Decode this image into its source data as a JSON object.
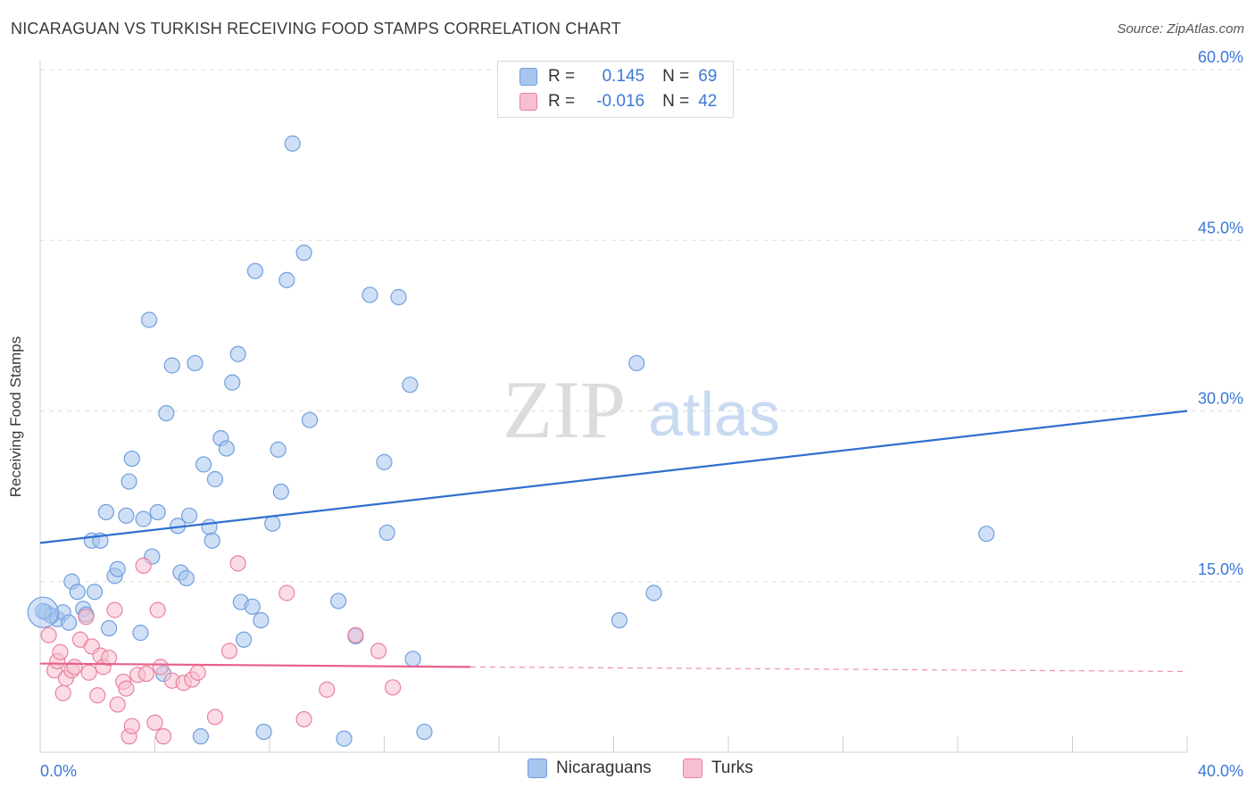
{
  "title": "NICARAGUAN VS TURKISH RECEIVING FOOD STAMPS CORRELATION CHART",
  "source": "Source: ZipAtlas.com",
  "watermark": {
    "zip": "ZIP",
    "atlas": "atlas"
  },
  "legend": {
    "rows": [
      {
        "r_label": "R =",
        "r_value": "0.145",
        "n_label": "N =",
        "n_value": "69",
        "color": "#a8c5ee",
        "stroke": "#6f9fde"
      },
      {
        "r_label": "R =",
        "r_value": "-0.016",
        "n_label": "N =",
        "n_value": "42",
        "color": "#f7bfd0",
        "stroke": "#e8829f"
      }
    ]
  },
  "bottom_legend": [
    {
      "label": "Nicaraguans",
      "color": "#a8c5ee",
      "stroke": "#6f9fde"
    },
    {
      "label": "Turks",
      "color": "#f7bfd0",
      "stroke": "#e8829f"
    }
  ],
  "chart_data": {
    "type": "scatter",
    "title": "NICARAGUAN VS TURKISH RECEIVING FOOD STAMPS CORRELATION CHART",
    "xlabel": "",
    "ylabel": "Receiving Food Stamps",
    "xlim": [
      0,
      40
    ],
    "ylim": [
      0,
      60
    ],
    "x_tick_labels": [
      "0.0%",
      "40.0%"
    ],
    "y_tick_labels": [
      "15.0%",
      "30.0%",
      "45.0%",
      "60.0%"
    ],
    "y_ticks": [
      15,
      30,
      45,
      60
    ],
    "grid": true,
    "series": [
      {
        "name": "Nicaraguans",
        "color": "#6f9fde",
        "fill": "#a8c5ee",
        "trend": {
          "x": [
            0,
            40
          ],
          "y": [
            18.4,
            30.0
          ],
          "color": "#2f6fd0"
        },
        "points": [
          [
            0.2,
            12.3
          ],
          [
            0.4,
            12.0
          ],
          [
            0.6,
            11.7
          ],
          [
            0.8,
            12.3
          ],
          [
            1.0,
            11.4
          ],
          [
            1.1,
            15.0
          ],
          [
            1.3,
            14.1
          ],
          [
            1.5,
            12.6
          ],
          [
            1.6,
            12.1
          ],
          [
            1.8,
            18.6
          ],
          [
            1.9,
            14.1
          ],
          [
            2.1,
            18.6
          ],
          [
            2.3,
            21.1
          ],
          [
            2.4,
            10.9
          ],
          [
            2.6,
            15.5
          ],
          [
            2.7,
            16.1
          ],
          [
            3.0,
            20.8
          ],
          [
            3.1,
            23.8
          ],
          [
            3.2,
            25.8
          ],
          [
            3.5,
            10.5
          ],
          [
            3.6,
            20.5
          ],
          [
            3.8,
            38.0
          ],
          [
            3.9,
            17.2
          ],
          [
            4.1,
            21.1
          ],
          [
            4.3,
            6.9
          ],
          [
            4.4,
            29.8
          ],
          [
            4.6,
            34.0
          ],
          [
            4.8,
            19.9
          ],
          [
            4.9,
            15.8
          ],
          [
            5.1,
            15.3
          ],
          [
            5.2,
            20.8
          ],
          [
            5.4,
            34.2
          ],
          [
            5.6,
            1.4
          ],
          [
            5.7,
            25.3
          ],
          [
            5.9,
            19.8
          ],
          [
            6.0,
            18.6
          ],
          [
            6.1,
            24.0
          ],
          [
            6.3,
            27.6
          ],
          [
            6.5,
            26.7
          ],
          [
            6.7,
            32.5
          ],
          [
            6.9,
            35.0
          ],
          [
            7.0,
            13.2
          ],
          [
            7.1,
            9.9
          ],
          [
            7.4,
            12.8
          ],
          [
            7.5,
            42.3
          ],
          [
            7.7,
            11.6
          ],
          [
            7.8,
            1.8
          ],
          [
            8.1,
            20.1
          ],
          [
            8.3,
            26.6
          ],
          [
            8.4,
            22.9
          ],
          [
            8.6,
            41.5
          ],
          [
            8.8,
            53.5
          ],
          [
            9.2,
            43.9
          ],
          [
            9.4,
            29.2
          ],
          [
            10.4,
            13.3
          ],
          [
            10.6,
            1.2
          ],
          [
            11.0,
            10.2
          ],
          [
            11.5,
            40.2
          ],
          [
            12.0,
            25.5
          ],
          [
            12.1,
            19.3
          ],
          [
            12.5,
            40.0
          ],
          [
            12.9,
            32.3
          ],
          [
            13.0,
            8.2
          ],
          [
            13.4,
            1.8
          ],
          [
            20.2,
            11.6
          ],
          [
            20.8,
            34.2
          ],
          [
            21.4,
            14.0
          ],
          [
            33.0,
            19.2
          ],
          [
            0.1,
            12.4
          ]
        ],
        "big_point": [
          0.1,
          12.3
        ]
      },
      {
        "name": "Turks",
        "color": "#e8829f",
        "fill": "#f7bfd0",
        "trend": {
          "x": [
            0,
            15
          ],
          "y": [
            7.8,
            7.5
          ],
          "dashed_to": [
            40,
            7.1
          ],
          "color": "#e8608a"
        },
        "points": [
          [
            0.3,
            10.3
          ],
          [
            0.5,
            7.2
          ],
          [
            0.6,
            8.0
          ],
          [
            0.7,
            8.8
          ],
          [
            0.8,
            5.2
          ],
          [
            0.9,
            6.5
          ],
          [
            1.1,
            7.2
          ],
          [
            1.2,
            7.5
          ],
          [
            1.4,
            9.9
          ],
          [
            1.6,
            11.9
          ],
          [
            1.7,
            7.0
          ],
          [
            1.8,
            9.3
          ],
          [
            2.0,
            5.0
          ],
          [
            2.1,
            8.5
          ],
          [
            2.2,
            7.5
          ],
          [
            2.4,
            8.3
          ],
          [
            2.6,
            12.5
          ],
          [
            2.7,
            4.2
          ],
          [
            2.9,
            6.2
          ],
          [
            3.0,
            5.6
          ],
          [
            3.1,
            1.4
          ],
          [
            3.2,
            2.3
          ],
          [
            3.4,
            6.8
          ],
          [
            3.6,
            16.4
          ],
          [
            3.7,
            6.9
          ],
          [
            4.0,
            2.6
          ],
          [
            4.1,
            12.5
          ],
          [
            4.2,
            7.5
          ],
          [
            4.3,
            1.4
          ],
          [
            4.6,
            6.3
          ],
          [
            5.0,
            6.1
          ],
          [
            5.3,
            6.4
          ],
          [
            5.5,
            7.0
          ],
          [
            6.1,
            3.1
          ],
          [
            6.6,
            8.9
          ],
          [
            6.9,
            16.6
          ],
          [
            8.6,
            14.0
          ],
          [
            9.2,
            2.9
          ],
          [
            10.0,
            5.5
          ],
          [
            11.0,
            10.3
          ],
          [
            11.8,
            8.9
          ],
          [
            12.3,
            5.7
          ]
        ]
      }
    ]
  }
}
